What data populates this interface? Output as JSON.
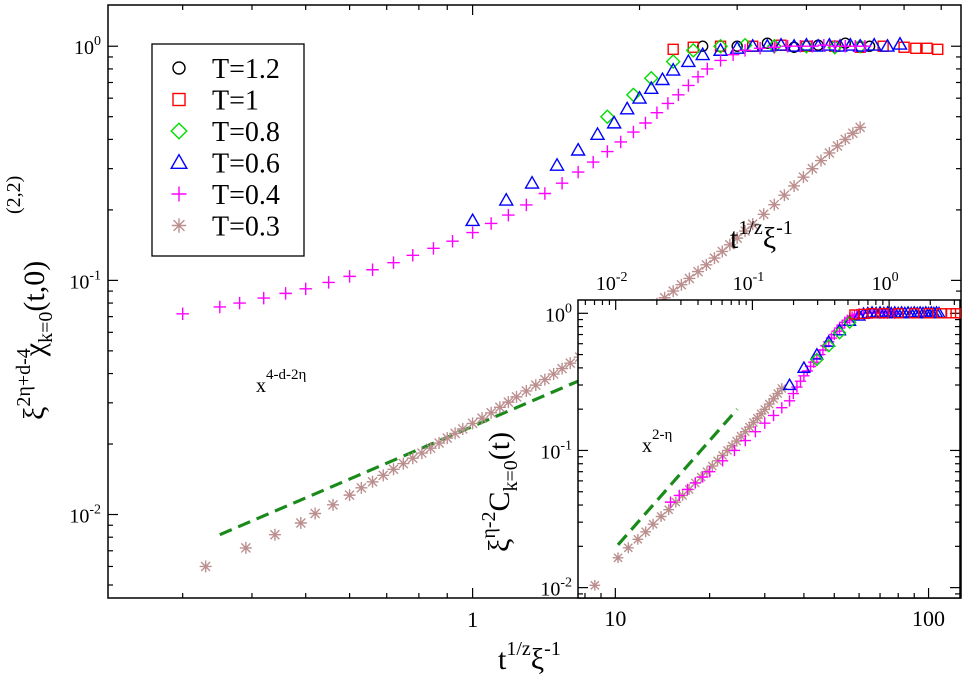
{
  "chart_data": [
    {
      "type": "scatter",
      "scale": "log-log",
      "xlim": [
        0.22,
        7.6
      ],
      "ylim": [
        0.0044,
        1.5
      ],
      "xticks": [
        {
          "value": 1,
          "label": "1"
        }
      ],
      "yticks": [
        {
          "value": 0.01,
          "base": "10",
          "exp": "-2"
        },
        {
          "value": 0.1,
          "base": "10",
          "exp": "-1"
        },
        {
          "value": 1,
          "base": "10",
          "exp": "0"
        }
      ],
      "xlabel": {
        "base": "t",
        "exp": "1/z",
        "tail": "ξ",
        "tail_exp": "-1"
      },
      "ylabel": {
        "base": "ξ",
        "exp": "2η+d-4",
        "mid": "χ",
        "sub": "k=0",
        "sup": "(2,2)",
        "tail": "(t,0)"
      },
      "legend": {
        "placement": "top-left",
        "entries": [
          "T=1.2",
          "T=1",
          "T=0.8",
          "T=0.6",
          "T=0.4",
          "T=0.3"
        ]
      },
      "guide_line": {
        "x": [
          0.35,
          3.1
        ],
        "y": [
          0.0082,
          0.075
        ],
        "color": "#1a8a1a",
        "dash": true
      },
      "guide_label": {
        "base": "x",
        "exp": "4-d-2η"
      },
      "series": [
        {
          "name": "T=1.2",
          "marker": "circle",
          "color": "#000000",
          "x": [
            2.6,
            3.0,
            3.4,
            3.8,
            4.2,
            4.7,
            5.2
          ],
          "y": [
            1.0,
            1.0,
            1.03,
            0.99,
            1.01,
            1.03,
            1.0
          ]
        },
        {
          "name": "T=1",
          "marker": "square",
          "color": "#ff0000",
          "x": [
            2.3,
            2.5,
            2.8,
            3.2,
            3.6,
            4.0,
            4.5,
            5.0,
            5.5,
            6.0,
            6.3,
            6.6,
            6.9
          ],
          "y": [
            0.97,
            0.99,
            1.0,
            1.0,
            1.01,
            1.0,
            1.0,
            0.99,
            1.0,
            0.99,
            0.98,
            0.98,
            0.97
          ]
        },
        {
          "name": "T=0.8",
          "marker": "diamond",
          "color": "#00dd00",
          "x": [
            1.75,
            1.95,
            2.1,
            2.3,
            2.5,
            2.8,
            3.1,
            3.5,
            4.0,
            4.5,
            5.0
          ],
          "y": [
            0.5,
            0.62,
            0.73,
            0.86,
            0.96,
            1.0,
            1.01,
            1.0,
            1.0,
            0.99,
            1.0
          ]
        },
        {
          "name": "T=0.6",
          "marker": "triangle",
          "color": "#0000ff",
          "x": [
            1.0,
            1.15,
            1.28,
            1.42,
            1.55,
            1.68,
            1.8,
            1.9,
            2.0,
            2.1,
            2.2,
            2.3,
            2.45,
            2.6,
            2.8,
            3.0,
            3.2,
            3.4,
            3.6,
            3.8,
            4.0,
            4.2,
            4.4,
            4.6,
            4.8,
            5.0,
            5.3,
            5.6,
            5.9
          ],
          "y": [
            0.18,
            0.22,
            0.26,
            0.31,
            0.36,
            0.42,
            0.47,
            0.54,
            0.6,
            0.66,
            0.72,
            0.79,
            0.86,
            0.92,
            0.96,
            0.98,
            1.0,
            1.0,
            1.01,
            1.0,
            1.01,
            1.0,
            1.01,
            1.0,
            1.01,
            1.0,
            1.01,
            1.0,
            1.02
          ]
        },
        {
          "name": "T=0.4",
          "marker": "plus",
          "color": "#ff00ff",
          "x": [
            0.3,
            0.35,
            0.38,
            0.42,
            0.46,
            0.5,
            0.55,
            0.6,
            0.66,
            0.72,
            0.78,
            0.85,
            0.92,
            1.0,
            1.08,
            1.16,
            1.25,
            1.35,
            1.45,
            1.55,
            1.65,
            1.75,
            1.85,
            1.95,
            2.05,
            2.15,
            2.25,
            2.35,
            2.45,
            2.55,
            2.65,
            2.8,
            2.95,
            3.1,
            3.3,
            3.5,
            3.7,
            3.9,
            4.1,
            4.3,
            4.5,
            4.7,
            4.9,
            5.1
          ],
          "y": [
            0.072,
            0.077,
            0.08,
            0.084,
            0.088,
            0.092,
            0.098,
            0.104,
            0.111,
            0.119,
            0.128,
            0.137,
            0.147,
            0.16,
            0.175,
            0.19,
            0.21,
            0.235,
            0.26,
            0.29,
            0.32,
            0.355,
            0.39,
            0.43,
            0.47,
            0.52,
            0.57,
            0.62,
            0.68,
            0.74,
            0.8,
            0.87,
            0.92,
            0.96,
            0.98,
            0.99,
            1.0,
            1.0,
            1.0,
            1.01,
            1.0,
            1.0,
            1.0,
            1.0
          ]
        },
        {
          "name": "T=0.3",
          "marker": "asterisk",
          "color": "#bc8f8f",
          "x": [
            0.33,
            0.39,
            0.44,
            0.49,
            0.52,
            0.56,
            0.6,
            0.63,
            0.66,
            0.69,
            0.72,
            0.75,
            0.78,
            0.81,
            0.84,
            0.87,
            0.9,
            0.93,
            0.96,
            1.0,
            1.04,
            1.08,
            1.12,
            1.16,
            1.2,
            1.25,
            1.3,
            1.35,
            1.4,
            1.45,
            1.5,
            1.56,
            1.62,
            1.68,
            1.74,
            1.8,
            1.87,
            1.94,
            2.01,
            2.08,
            2.15,
            2.22,
            2.3,
            2.38,
            2.46,
            2.55,
            2.64,
            2.73,
            2.82,
            2.91,
            3.0,
            3.1,
            3.2,
            3.35,
            3.5,
            3.65,
            3.8,
            3.95,
            4.1,
            4.25,
            4.4,
            4.55,
            4.7,
            4.85,
            5.0
          ],
          "y": [
            0.006,
            0.0072,
            0.0082,
            0.0092,
            0.0101,
            0.011,
            0.0121,
            0.013,
            0.0138,
            0.0147,
            0.0156,
            0.0165,
            0.0174,
            0.0183,
            0.0192,
            0.0202,
            0.0212,
            0.0222,
            0.0232,
            0.0245,
            0.0258,
            0.0272,
            0.0287,
            0.0302,
            0.0318,
            0.0337,
            0.0357,
            0.0377,
            0.0398,
            0.042,
            0.0443,
            0.047,
            0.0498,
            0.0528,
            0.0559,
            0.059,
            0.0628,
            0.0667,
            0.0707,
            0.075,
            0.0795,
            0.0843,
            0.09,
            0.0958,
            0.1019,
            0.109,
            0.1165,
            0.1245,
            0.1329,
            0.1419,
            0.1515,
            0.1624,
            0.1738,
            0.1915,
            0.2105,
            0.231,
            0.253,
            0.276,
            0.3,
            0.325,
            0.35,
            0.375,
            0.4,
            0.425,
            0.45
          ]
        }
      ]
    },
    {
      "type": "scatter",
      "scale": "log-log",
      "role": "inset",
      "xlim_bottom": [
        7.6,
        126
      ],
      "xlim_top": [
        0.0053,
        3.3
      ],
      "ylim": [
        0.0084,
        1.25
      ],
      "xticks_bottom": [
        {
          "value": 10,
          "label": "10"
        },
        {
          "value": 100,
          "label": "100"
        }
      ],
      "xticks_top": [
        {
          "value": 0.01,
          "base": "10",
          "exp": "-2"
        },
        {
          "value": 0.1,
          "base": "10",
          "exp": "-1"
        },
        {
          "value": 1,
          "base": "10",
          "exp": "0"
        }
      ],
      "yticks": [
        {
          "value": 0.01,
          "base": "10",
          "exp": "-2"
        },
        {
          "value": 0.1,
          "base": "10",
          "exp": "-1"
        },
        {
          "value": 1,
          "base": "10",
          "exp": "0"
        }
      ],
      "xlabel_top": {
        "base": "t",
        "exp": "1/z",
        "tail": "ξ",
        "tail_exp": "-1"
      },
      "ylabel": {
        "base": "ξ",
        "exp": "η-2",
        "mid": "C",
        "sub": "k=0",
        "tail": "(t)"
      },
      "guide_line": {
        "x": [
          10.2,
          24.5
        ],
        "y": [
          0.0205,
          0.2
        ],
        "color": "#1a8a1a",
        "dash": true
      },
      "guide_label": {
        "base": "x",
        "exp": "2-η"
      },
      "series": [
        {
          "name": "T=0.3",
          "marker": "asterisk",
          "color": "#bc8f8f",
          "x": [
            8.6,
            10.2,
            11.0,
            11.8,
            12.5,
            13.2,
            14.0,
            14.8,
            15.6,
            16.4,
            17.2,
            18.0,
            18.8,
            19.6,
            20.4,
            21.2,
            22.0,
            22.8,
            23.6,
            24.4,
            25.2,
            26.0,
            26.8,
            27.6,
            28.4,
            29.2,
            30.0,
            31.0,
            32.0,
            33.0,
            34.0
          ],
          "y": [
            0.0104,
            0.0165,
            0.0195,
            0.0225,
            0.0255,
            0.029,
            0.033,
            0.037,
            0.042,
            0.047,
            0.052,
            0.058,
            0.064,
            0.07,
            0.077,
            0.084,
            0.092,
            0.1,
            0.108,
            0.117,
            0.127,
            0.137,
            0.148,
            0.16,
            0.172,
            0.185,
            0.199,
            0.218,
            0.238,
            0.26,
            0.283
          ]
        },
        {
          "name": "T=0.4",
          "marker": "plus",
          "color": "#ff00ff",
          "x": [
            15.0,
            16.0,
            17.0,
            18.0,
            19.0,
            20.0,
            22.0,
            24.0,
            26.0,
            28.0,
            30.0,
            32.0,
            34.0,
            36.0,
            37.0,
            38.0,
            39.0,
            40.0,
            41.0,
            42.0,
            43.0,
            44.0,
            45.0,
            46.0,
            47.0,
            48.0,
            49.0,
            50.0,
            51.0,
            52.0,
            53.0,
            54.0,
            55.0,
            56.0,
            57.0,
            58.0,
            59.0,
            60.0,
            62.0,
            64.0,
            66.0,
            68.0,
            70.0,
            72.0,
            74.0,
            76.0,
            78.0
          ],
          "y": [
            0.042,
            0.047,
            0.052,
            0.058,
            0.064,
            0.07,
            0.084,
            0.1,
            0.118,
            0.137,
            0.158,
            0.18,
            0.205,
            0.23,
            0.26,
            0.29,
            0.32,
            0.35,
            0.38,
            0.41,
            0.44,
            0.47,
            0.5,
            0.54,
            0.58,
            0.62,
            0.66,
            0.7,
            0.74,
            0.78,
            0.82,
            0.86,
            0.89,
            0.92,
            0.94,
            0.96,
            0.98,
            0.99,
            1.0,
            1.0,
            1.0,
            1.01,
            1.0,
            1.0,
            1.0,
            1.01,
            1.0
          ]
        },
        {
          "name": "T=0.6",
          "marker": "triangle",
          "color": "#0000ff",
          "x": [
            36.0,
            40.0,
            44.0,
            48.0,
            52.0,
            56.0,
            60.0,
            62.0,
            64.0,
            66.0,
            68.0,
            70.0,
            72.0,
            74.0,
            76.0,
            78.0,
            80.0,
            82.0,
            84.0,
            86.0,
            88.0,
            90.0,
            92.0,
            94.0,
            96.0,
            98.0,
            100.0,
            102.0,
            104.0,
            106.0,
            108.0
          ],
          "y": [
            0.3,
            0.4,
            0.5,
            0.62,
            0.75,
            0.88,
            0.96,
            0.99,
            1.0,
            1.01,
            1.0,
            1.01,
            1.0,
            1.01,
            1.0,
            1.01,
            1.0,
            1.01,
            1.0,
            1.01,
            1.0,
            1.01,
            1.0,
            1.01,
            1.0,
            1.01,
            1.0,
            1.01,
            1.0,
            1.01,
            1.0
          ]
        },
        {
          "name": "T=0.8",
          "marker": "diamond",
          "color": "#00dd00",
          "x": [
            44.0,
            48.0,
            52.0,
            56.0
          ],
          "y": [
            0.46,
            0.58,
            0.72,
            0.86
          ]
        },
        {
          "name": "T=1",
          "marker": "square",
          "color": "#ff0000",
          "x": [
            58.0,
            62.0,
            66.0,
            72.0,
            80.0,
            90.0,
            100.0,
            110.0,
            118.0,
            122.0
          ],
          "y": [
            0.98,
            0.99,
            1.0,
            1.0,
            1.0,
            1.0,
            1.0,
            1.0,
            1.0,
            1.0
          ]
        }
      ]
    }
  ]
}
